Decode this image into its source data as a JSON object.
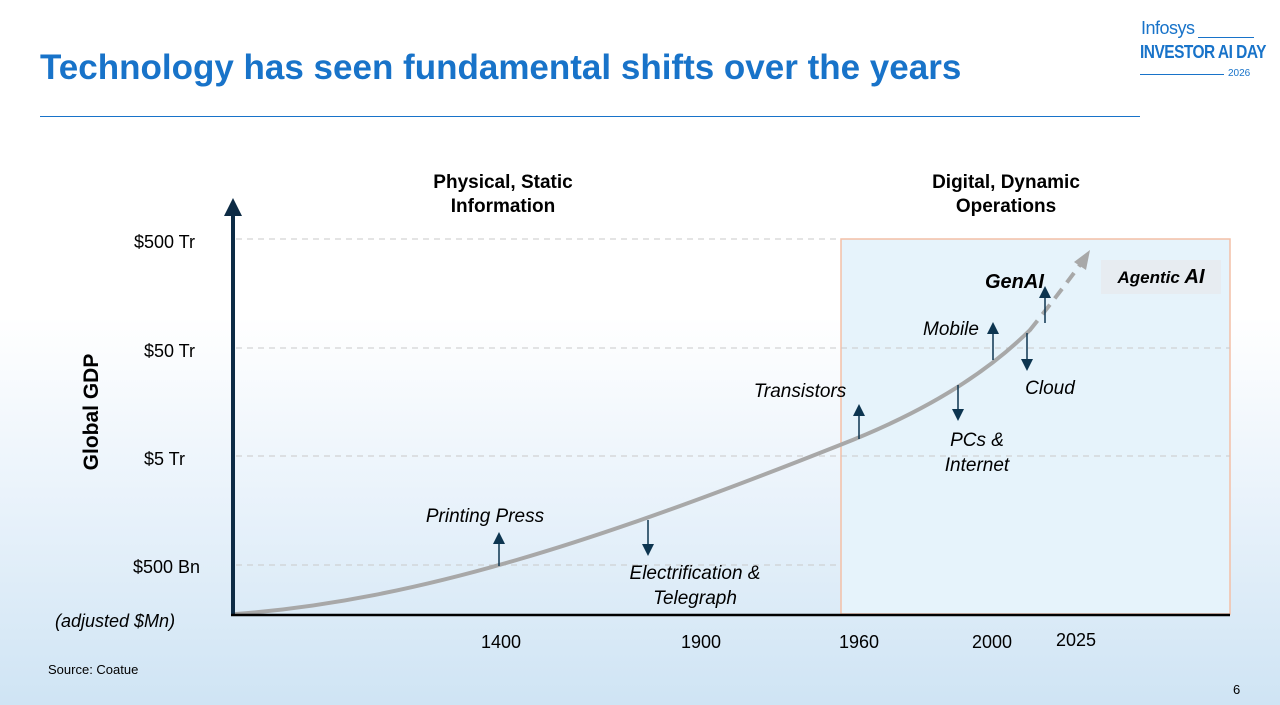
{
  "slide": {
    "title": "Technology has seen fundamental shifts over the years",
    "source": "Source: Coatue",
    "page_number": "6",
    "logo": {
      "brand": "Infosys",
      "event": "INVESTOR AI DAY",
      "year": "2026"
    },
    "colors": {
      "title": "#1873c9",
      "axis": "#0d2b45",
      "curve": "#a8a8a8",
      "highlight_border": "#f4bfa6",
      "highlight_fill": "#e6f3fb"
    }
  },
  "chart_data": {
    "type": "line",
    "title": "",
    "xlabel": "",
    "ylabel": "Global GDP",
    "y_units": "(adjusted $Mn)",
    "y_scale": "log",
    "y_ticks": [
      "$500 Bn",
      "$5 Tr",
      "$50 Tr",
      "$500 Tr"
    ],
    "x_ticks": [
      "1400",
      "1900",
      "1960",
      "2000",
      "2025"
    ],
    "phases": [
      {
        "label_line1": "Physical, Static",
        "label_line2": "Information"
      },
      {
        "label_line1": "Digital, Dynamic",
        "label_line2": "Operations"
      }
    ],
    "events": [
      {
        "line1": "Printing Press",
        "line2": "",
        "direction": "up"
      },
      {
        "line1": "Electrification &",
        "line2": "Telegraph",
        "direction": "down"
      },
      {
        "line1": "Transistors",
        "line2": "",
        "direction": "up"
      },
      {
        "line1": "PCs &",
        "line2": "Internet",
        "direction": "down"
      },
      {
        "line1": "Mobile",
        "line2": "",
        "direction": "up"
      },
      {
        "line1": "Cloud",
        "line2": "",
        "direction": "down"
      },
      {
        "line1": "GenAI",
        "line2": "",
        "direction": "up"
      }
    ],
    "future_label": {
      "prefix": "Agentic ",
      "suffix": "AI"
    }
  }
}
